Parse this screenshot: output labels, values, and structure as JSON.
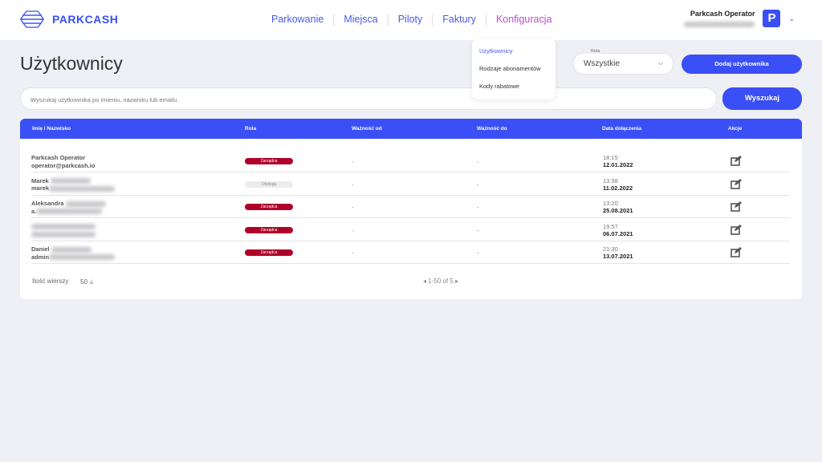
{
  "brand": {
    "name": "PARKCASH",
    "accent": "#3a4ff5"
  },
  "nav": [
    {
      "label": "Parkowanie"
    },
    {
      "label": "Miejsca"
    },
    {
      "label": "Piloty"
    },
    {
      "label": "Faktury"
    },
    {
      "label": "Konfiguracja",
      "active": true
    }
  ],
  "user": {
    "name": "Parkcash Operator",
    "avatar": "P"
  },
  "dropdown": [
    "Użytkownicy",
    "Rodzaje abonamentów",
    "Kody rabatowe"
  ],
  "page": {
    "title": "Użytkownicy",
    "role_label": "Rola",
    "role_value": "Wszystkie",
    "add_button": "Dodaj użytkownika",
    "search_placeholder": "Wyszukaj użytkownika po imieniu, nazwisku lub emailu",
    "search_button": "Wyszukaj"
  },
  "table": {
    "headers": [
      "Imię i Nazwisko",
      "Rola",
      "Ważność od",
      "Ważność do",
      "Data dołączenia",
      "Akcje"
    ],
    "rows": [
      {
        "name": "Parkcash Operator",
        "email": "operator@parkcash.io",
        "role": "Zarządca",
        "from": "-",
        "to": "-",
        "time": "18:15",
        "date": "12.01.2022"
      },
      {
        "name": "Marek",
        "email": "marek",
        "role": "Obsługa",
        "from": "-",
        "to": "-",
        "time": "13:38",
        "date": "11.02.2022"
      },
      {
        "name": "Aleksandra",
        "email": "a.",
        "role": "Zarządca",
        "from": "-",
        "to": "-",
        "time": "13:20",
        "date": "25.08.2021"
      },
      {
        "name": "",
        "email": "",
        "role": "Zarządca",
        "from": "-",
        "to": "-",
        "time": "19:57",
        "date": "06.07.2021"
      },
      {
        "name": "Daniel",
        "email": "admin",
        "role": "Zarządca",
        "from": "-",
        "to": "-",
        "time": "21:30",
        "date": "13.07.2021"
      }
    ],
    "rows_label": "Ilość wierszy",
    "rows_value": "50",
    "pagination": "1-50 of 5"
  },
  "colors": {
    "manager": "#b0002a",
    "service": "#ececec"
  }
}
